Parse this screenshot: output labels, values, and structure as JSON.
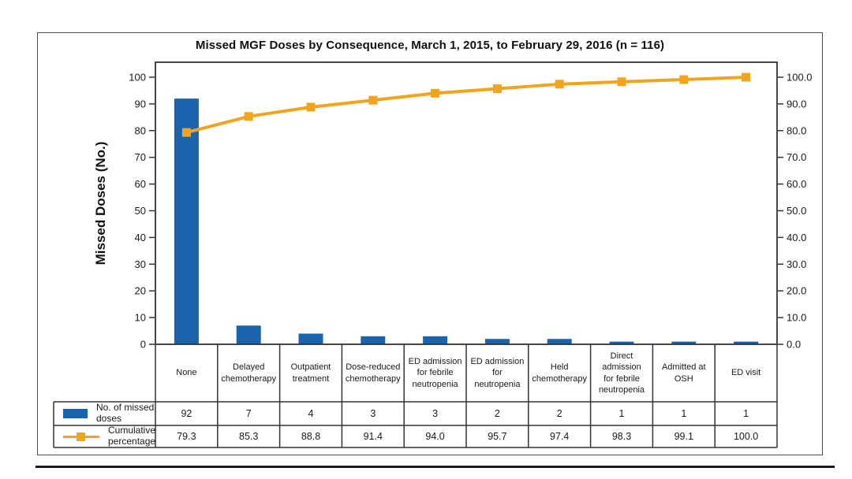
{
  "title": "Missed MGF Doses by Consequence, March 1, 2015, to February 29, 2016 (n = 116)",
  "chart_data": {
    "type": "bar",
    "subtype": "pareto (bars + cumulative percentage line)",
    "categories": [
      "None",
      "Delayed\nchemotherapy",
      "Outpatient\ntreatment",
      "Dose-reduced\nchemotherapy",
      "ED admission\nfor febrile\nneutropenia",
      "ED admission\nfor\nneutropenia",
      "Held\nchemotherapy",
      "Direct\nadmission\nfor febrile\nneutropenia",
      "Admitted at\nOSH",
      "ED visit"
    ],
    "series": [
      {
        "name": "No. of missed doses",
        "type": "bar",
        "color": "#1B63AC",
        "values": [
          92,
          7,
          4,
          3,
          3,
          2,
          2,
          1,
          1,
          1
        ]
      },
      {
        "name": "Cumulative percentage",
        "type": "line",
        "color": "#F2A41D",
        "values": [
          79.3,
          85.3,
          88.8,
          91.4,
          94.0,
          95.7,
          97.4,
          98.3,
          99.1,
          100.0
        ]
      }
    ],
    "title": "Missed MGF Doses by Consequence, March 1, 2015, to February 29, 2016 (n = 116)",
    "n_total": "n = 116",
    "left_axis": {
      "label": "Missed Doses (No.)",
      "range": [
        0,
        100
      ],
      "ticks": [
        "0",
        "10",
        "20",
        "30",
        "40",
        "50",
        "60",
        "70",
        "80",
        "90",
        "100"
      ]
    },
    "right_axis": {
      "label": "",
      "range": [
        0,
        100
      ],
      "ticks": [
        "0.0",
        "10.0",
        "20.0",
        "30.0",
        "40.0",
        "50.0",
        "60.0",
        "70.0",
        "80.0",
        "90.0",
        "100.0"
      ]
    },
    "grid": false,
    "legend_position": "table rows below chart"
  },
  "table": {
    "rows": [
      {
        "label": "No. of missed\ndoses",
        "swatch": "bar",
        "values": [
          "92",
          "7",
          "4",
          "3",
          "3",
          "2",
          "2",
          "1",
          "1",
          "1"
        ]
      },
      {
        "label": "Cumulative\npercentage",
        "swatch": "line",
        "values": [
          "79.3",
          "85.3",
          "88.8",
          "91.4",
          "94.0",
          "95.7",
          "97.4",
          "98.3",
          "99.1",
          "100.0"
        ]
      }
    ]
  },
  "colors": {
    "bar": "#1B63AC",
    "line": "#F2A41D",
    "grid_stroke": "#333333",
    "frame_stroke": "#4d4d4d",
    "text": "#1a1a1a"
  }
}
